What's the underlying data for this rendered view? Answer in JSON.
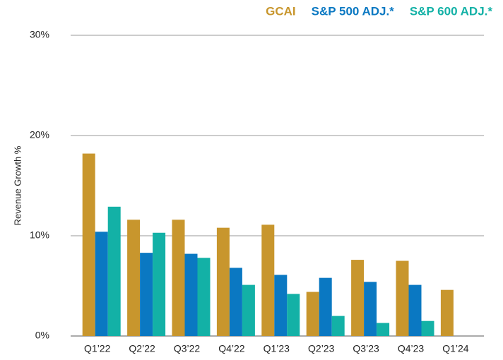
{
  "chart_data": {
    "type": "bar",
    "y_label": "Revenue Growth %",
    "categories": [
      "Q1’22",
      "Q2’22",
      "Q3’22",
      "Q4’22",
      "Q1’23",
      "Q2’23",
      "Q3’23",
      "Q4’23",
      "Q1’24"
    ],
    "series": [
      {
        "name": "GCAI",
        "color": "#c8962d",
        "values": [
          18.2,
          11.6,
          11.6,
          10.8,
          11.1,
          4.4,
          7.6,
          7.5,
          4.6
        ]
      },
      {
        "name": "S&P 500 ADJ.*",
        "color": "#0a78c2",
        "values": [
          10.4,
          8.3,
          8.2,
          6.8,
          6.1,
          5.8,
          5.4,
          5.1,
          null
        ]
      },
      {
        "name": "S&P 600 ADJ.*",
        "color": "#13b1a6",
        "values": [
          12.9,
          10.3,
          7.8,
          5.1,
          4.2,
          2.0,
          1.3,
          1.5,
          null
        ]
      }
    ],
    "ylim": [
      0,
      30
    ],
    "yticks": [
      {
        "value": 0,
        "label": "0%"
      },
      {
        "value": 10,
        "label": "10%"
      },
      {
        "value": 20,
        "label": "20%"
      },
      {
        "value": 30,
        "label": "30%"
      }
    ],
    "grid": true,
    "legend": "top-right"
  }
}
